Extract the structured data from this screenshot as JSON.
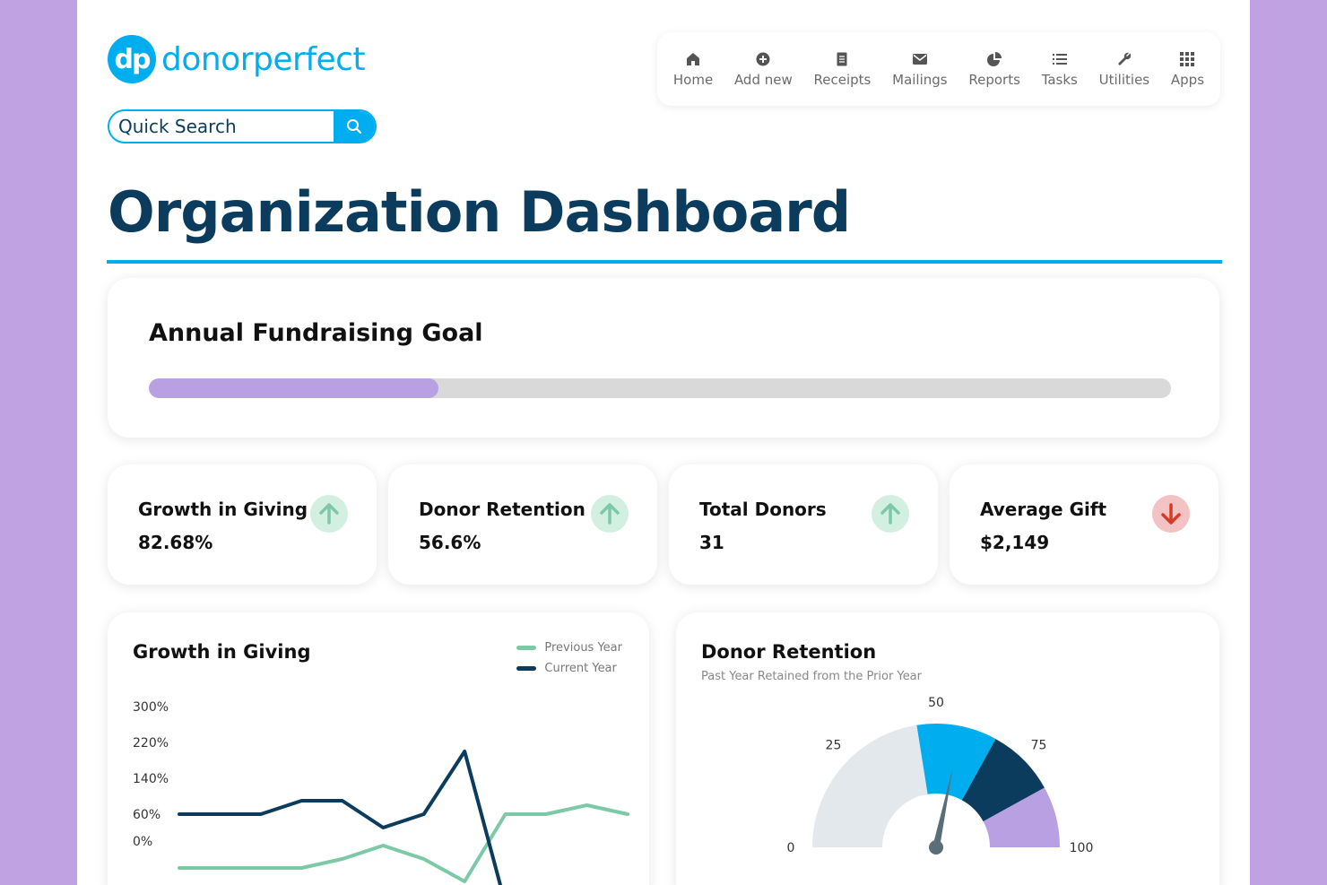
{
  "logo": {
    "mark": "dp",
    "text": "donorperfect"
  },
  "search": {
    "placeholder": "Quick Search"
  },
  "nav": {
    "items": [
      {
        "label": "Home",
        "icon": "home-icon"
      },
      {
        "label": "Add new",
        "icon": "plus-circle-icon"
      },
      {
        "label": "Receipts",
        "icon": "receipt-icon"
      },
      {
        "label": "Mailings",
        "icon": "envelope-icon"
      },
      {
        "label": "Reports",
        "icon": "pie-chart-icon"
      },
      {
        "label": "Tasks",
        "icon": "list-icon"
      },
      {
        "label": "Utilities",
        "icon": "wrench-icon"
      },
      {
        "label": "Apps",
        "icon": "grid-icon"
      }
    ]
  },
  "page_title": "Organization Dashboard",
  "goal": {
    "title": "Annual Fundraising Goal",
    "progress_fraction": 0.283
  },
  "kpis": [
    {
      "title": "Growth in Giving",
      "value": "82.68%",
      "trend": "up"
    },
    {
      "title": "Donor Retention",
      "value": "56.6%",
      "trend": "up"
    },
    {
      "title": "Total Donors",
      "value": "31",
      "trend": "up"
    },
    {
      "title": "Average Gift",
      "value": "$2,149",
      "trend": "down"
    }
  ],
  "colors": {
    "brand": "#00aeef",
    "navy": "#0b3c5d",
    "purple": "#b9a0e3",
    "green": "#7cc9a8",
    "up_arrow": "#7cc9a8",
    "down_arrow": "#d63b2a"
  },
  "chart_data": [
    {
      "type": "line",
      "title": "Growth in Giving",
      "ylim": [
        -80,
        300
      ],
      "y_ticks": [
        "300%",
        "220%",
        "140%",
        "60%",
        "0%"
      ],
      "y_tick_values": [
        300,
        220,
        140,
        60,
        0
      ],
      "legend_position": "top-right",
      "series": [
        {
          "name": "Previous Year",
          "color": "#7cc9a8",
          "values": [
            -60,
            -60,
            -60,
            -60,
            -40,
            -10,
            -40,
            -90,
            60,
            60,
            80,
            60
          ]
        },
        {
          "name": "Current Year",
          "color": "#0b3c5d",
          "values": [
            60,
            60,
            60,
            90,
            90,
            30,
            60,
            200,
            -140,
            null,
            null,
            null
          ]
        }
      ]
    },
    {
      "type": "gauge",
      "title": "Donor Retention",
      "subtitle": "Past Year Retained from the Prior Year",
      "min": 0,
      "max": 100,
      "tick_labels": [
        "0",
        "25",
        "50",
        "75",
        "100"
      ],
      "value": 56.6,
      "bands": [
        {
          "from": 0,
          "to": 45,
          "color": "#e3e8ec"
        },
        {
          "from": 45,
          "to": 66,
          "color": "#00aeef"
        },
        {
          "from": 66,
          "to": 84,
          "color": "#0b3c5d"
        },
        {
          "from": 84,
          "to": 100,
          "color": "#b9a0e3"
        }
      ]
    }
  ]
}
